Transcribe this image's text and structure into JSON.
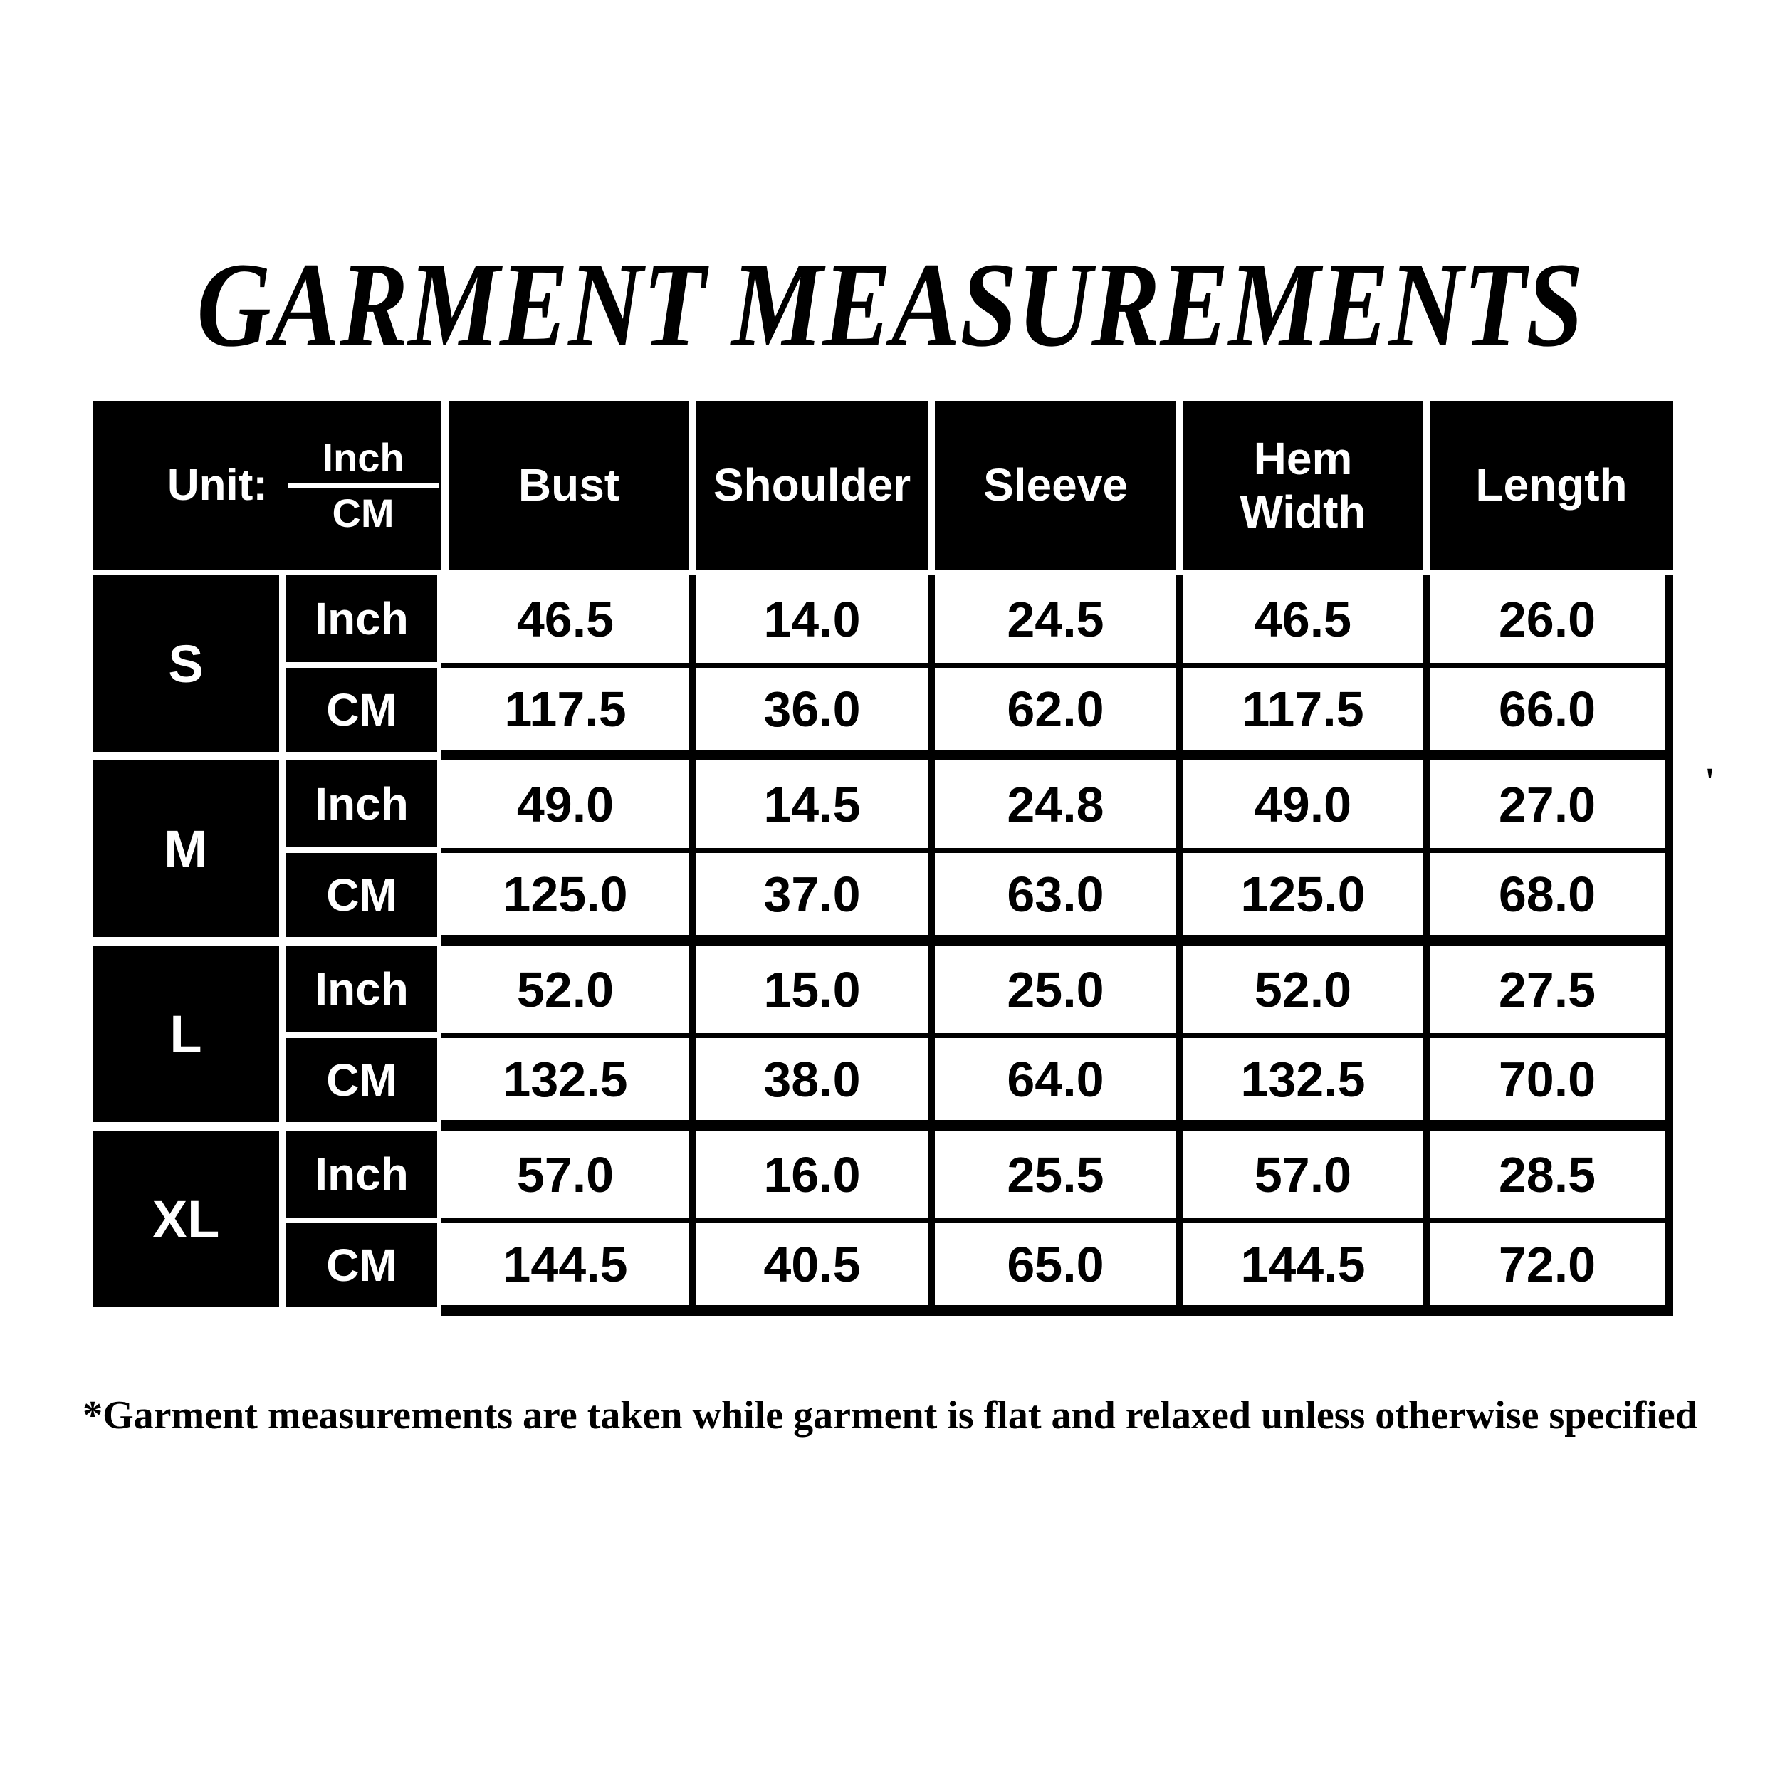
{
  "title": "GARMENT MEASUREMENTS",
  "table": {
    "unit_label": "Unit:",
    "unit_fraction": {
      "top": "Inch",
      "bottom": "CM"
    },
    "columns": [
      "Bust",
      "Shoulder",
      "Sleeve",
      "Hem Width",
      "Length"
    ],
    "row_unit_labels": [
      "Inch",
      "CM"
    ],
    "sizes": [
      {
        "size": "S",
        "inch": [
          "46.5",
          "14.0",
          "24.5",
          "46.5",
          "26.0"
        ],
        "cm": [
          "117.5",
          "36.0",
          "62.0",
          "117.5",
          "66.0"
        ]
      },
      {
        "size": "M",
        "inch": [
          "49.0",
          "14.5",
          "24.8",
          "49.0",
          "27.0"
        ],
        "cm": [
          "125.0",
          "37.0",
          "63.0",
          "125.0",
          "68.0"
        ]
      },
      {
        "size": "L",
        "inch": [
          "52.0",
          "15.0",
          "25.0",
          "52.0",
          "27.5"
        ],
        "cm": [
          "132.5",
          "38.0",
          "64.0",
          "132.5",
          "70.0"
        ]
      },
      {
        "size": "XL",
        "inch": [
          "57.0",
          "16.0",
          "25.5",
          "57.0",
          "28.5"
        ],
        "cm": [
          "144.5",
          "40.5",
          "65.0",
          "144.5",
          "72.0"
        ]
      }
    ]
  },
  "footnote": "*Garment measurements are taken while garment is flat and relaxed unless otherwise specified",
  "stray_mark": "'",
  "colors": {
    "black": "#000000",
    "white": "#ffffff"
  }
}
